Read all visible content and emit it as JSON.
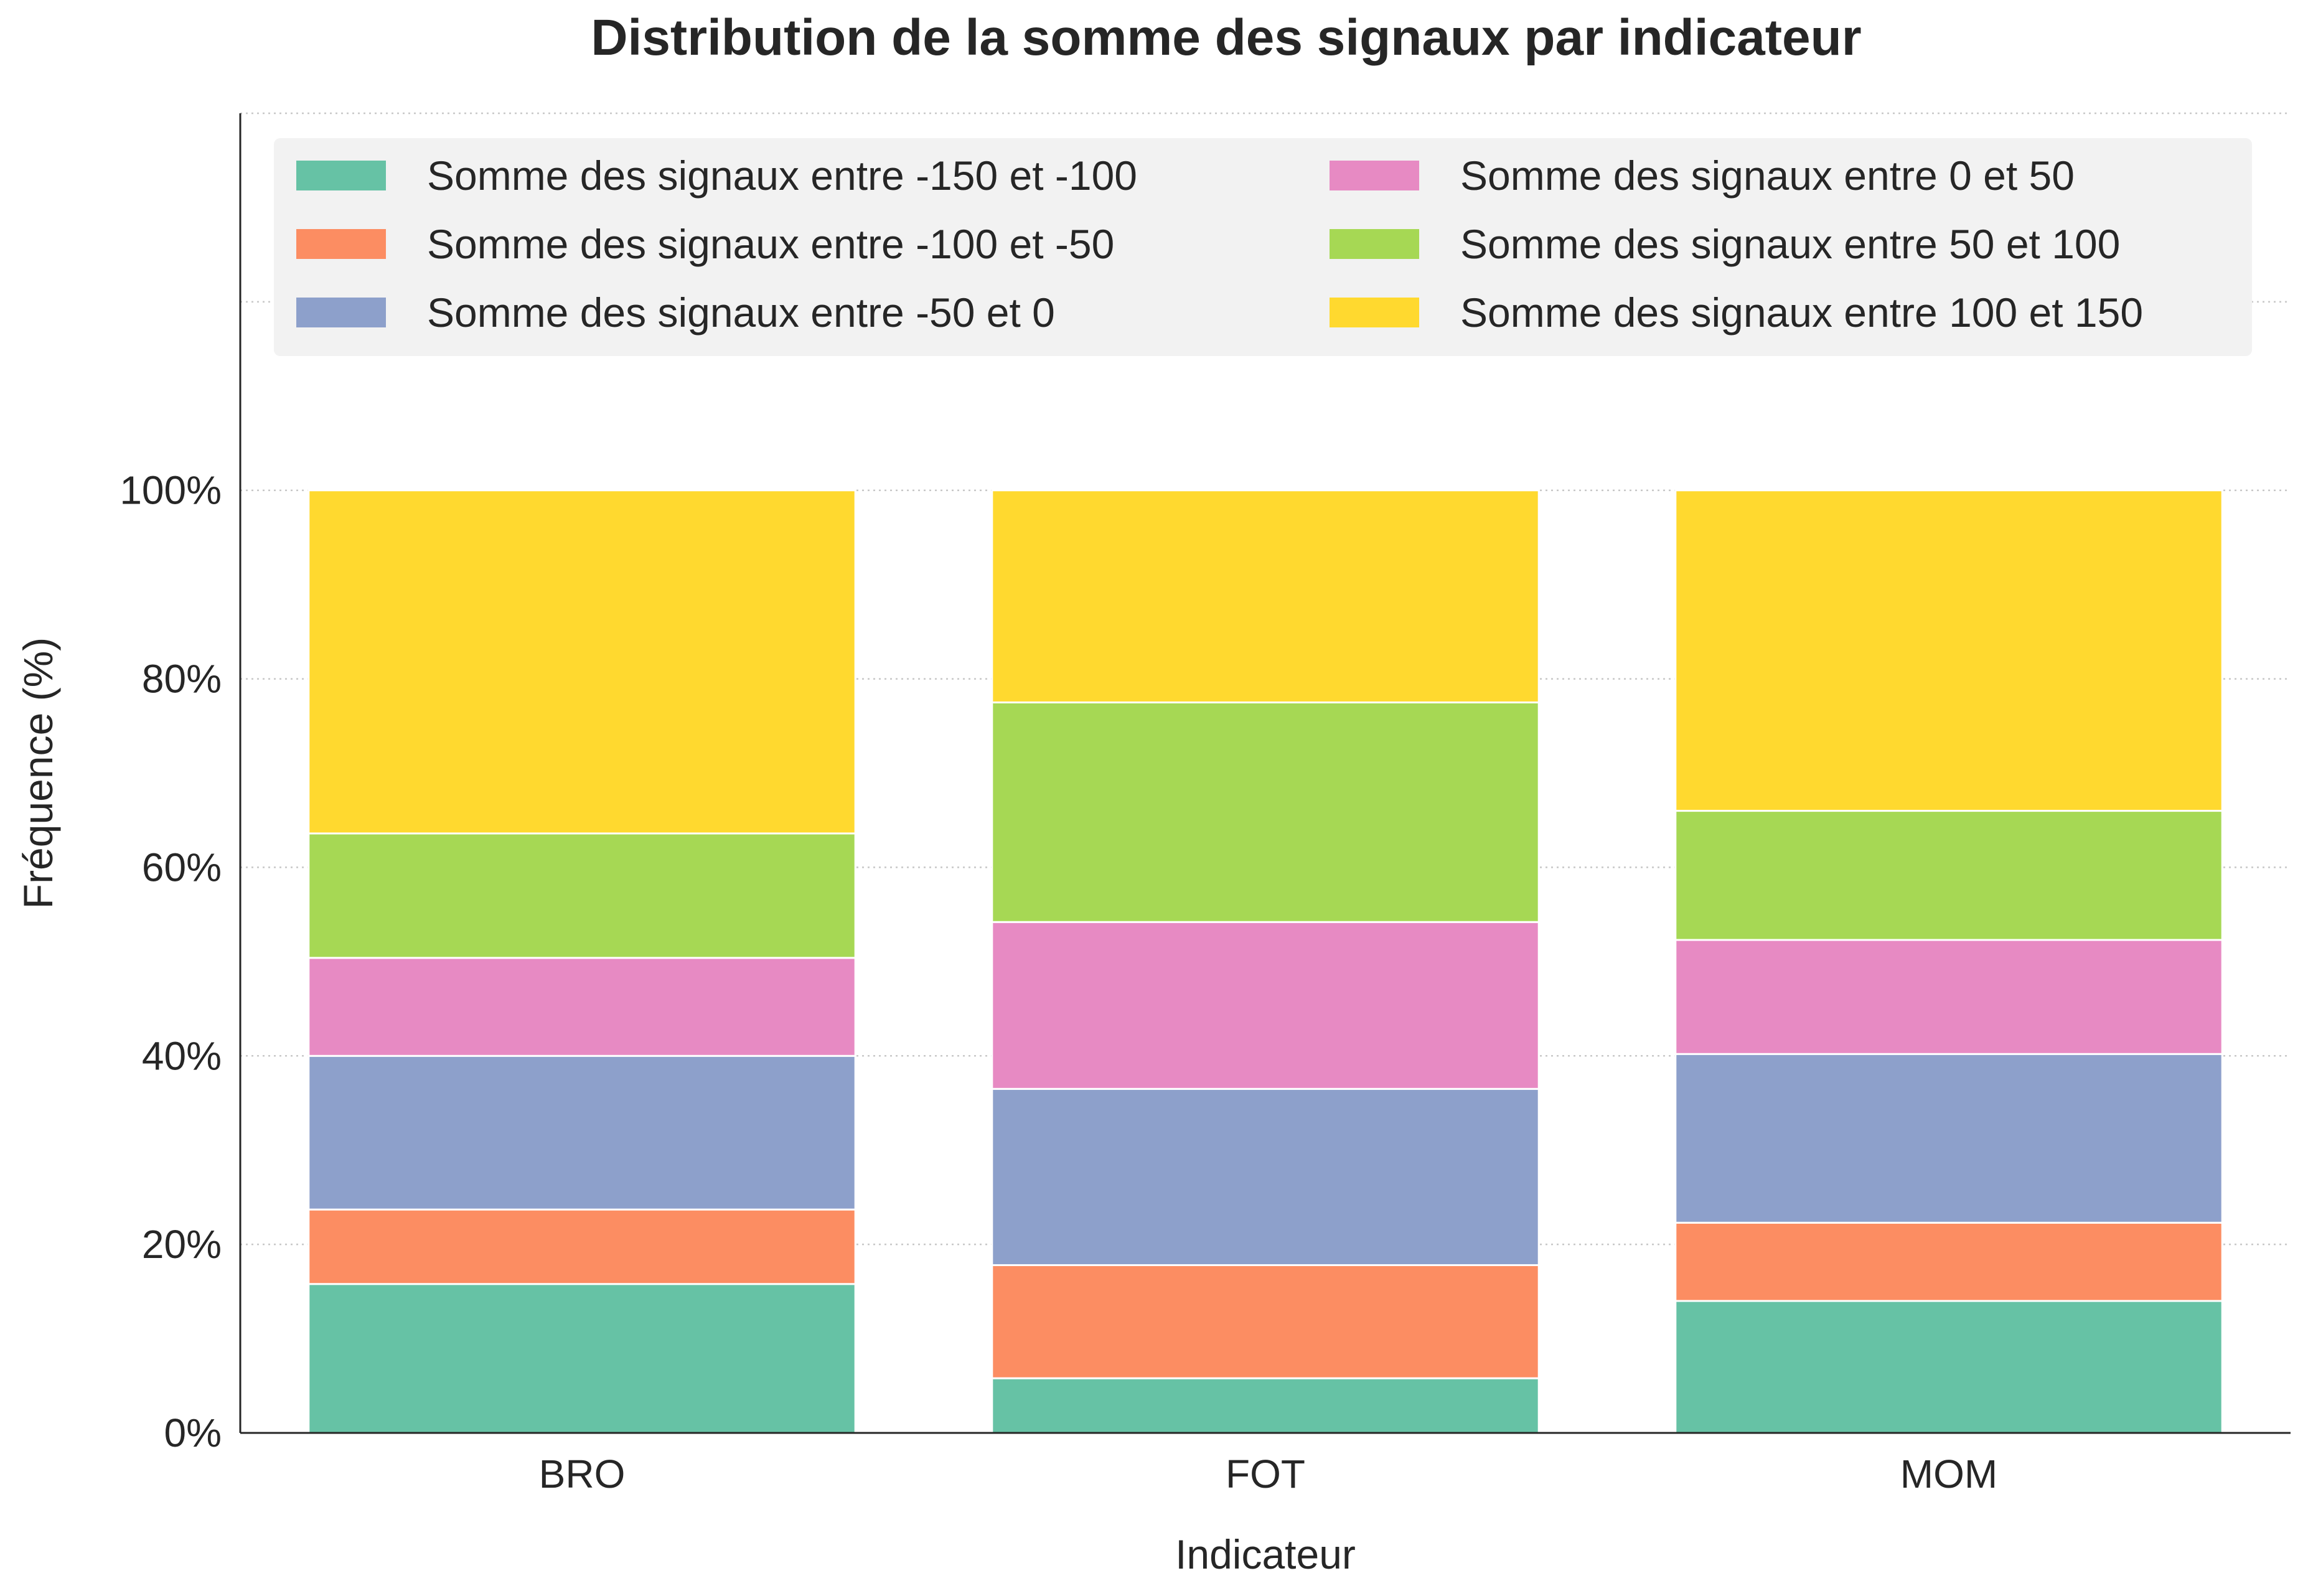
{
  "chart_data": {
    "type": "bar",
    "stacked": true,
    "title": "Distribution de la somme des signaux par indicateur",
    "xlabel": "Indicateur",
    "ylabel": "Fréquence (%)",
    "categories": [
      "BRO",
      "FOT",
      "MOM"
    ],
    "ylim": [
      0,
      140
    ],
    "yticks": [
      0,
      20,
      40,
      60,
      80,
      100
    ],
    "ytick_labels": [
      "0%",
      "20%",
      "40%",
      "60%",
      "80%",
      "100%"
    ],
    "grid": "horizontal dotted",
    "legend_position": "top",
    "series": [
      {
        "name": "Somme des signaux entre -150 et -100",
        "color": "#66c2a5",
        "values": [
          15.8,
          5.8,
          14.0
        ]
      },
      {
        "name": "Somme des signaux entre -100 et -50",
        "color": "#fc8d62",
        "values": [
          7.9,
          12.0,
          8.3
        ]
      },
      {
        "name": "Somme des signaux entre -50 et 0",
        "color": "#8da0cb",
        "values": [
          16.3,
          18.7,
          17.9
        ]
      },
      {
        "name": "Somme des signaux entre 0 et 50",
        "color": "#e78ac3",
        "values": [
          10.4,
          17.7,
          12.1
        ]
      },
      {
        "name": "Somme des signaux entre 50 et 100",
        "color": "#a6d854",
        "values": [
          13.2,
          23.3,
          13.7
        ]
      },
      {
        "name": "Somme des signaux entre 100 et 150",
        "color": "#ffd92f",
        "values": [
          36.4,
          22.5,
          34.0
        ]
      }
    ]
  }
}
